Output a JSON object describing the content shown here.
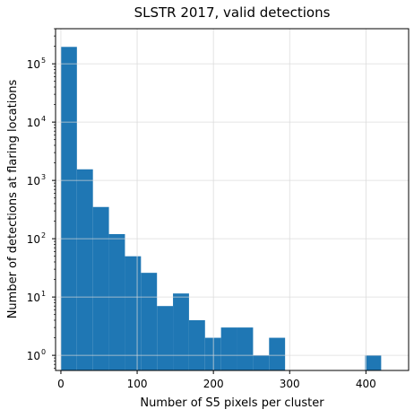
{
  "chart_data": {
    "type": "bar",
    "title": "SLSTR 2017, valid detections",
    "xlabel": "Number of S5 pixels per cluster",
    "ylabel": "Number of detections at flaring locations",
    "x_range": [
      -7,
      456
    ],
    "y_range": [
      0.55,
      400000
    ],
    "y_scale": "log",
    "grid": true,
    "x_ticks": [
      {
        "value": 0,
        "label": "0"
      },
      {
        "value": 100,
        "label": "100"
      },
      {
        "value": 200,
        "label": "200"
      },
      {
        "value": 300,
        "label": "300"
      },
      {
        "value": 400,
        "label": "400"
      }
    ],
    "y_ticks": [
      {
        "value": 1,
        "base": "10",
        "exp": "0"
      },
      {
        "value": 10,
        "base": "10",
        "exp": "1"
      },
      {
        "value": 100,
        "base": "10",
        "exp": "2"
      },
      {
        "value": 1000,
        "base": "10",
        "exp": "3"
      },
      {
        "value": 10000,
        "base": "10",
        "exp": "4"
      },
      {
        "value": 100000,
        "base": "10",
        "exp": "5"
      }
    ],
    "bar_color": "#1f77b4",
    "bins": [
      {
        "x0": 0,
        "x1": 21,
        "value": 195000
      },
      {
        "x0": 21,
        "x1": 42,
        "value": 1550
      },
      {
        "x0": 42,
        "x1": 63,
        "value": 350
      },
      {
        "x0": 63,
        "x1": 84,
        "value": 120
      },
      {
        "x0": 84,
        "x1": 105,
        "value": 50
      },
      {
        "x0": 105,
        "x1": 126,
        "value": 26
      },
      {
        "x0": 126,
        "x1": 147,
        "value": 7
      },
      {
        "x0": 147,
        "x1": 168,
        "value": 11.5
      },
      {
        "x0": 168,
        "x1": 189,
        "value": 4
      },
      {
        "x0": 189,
        "x1": 210,
        "value": 2
      },
      {
        "x0": 210,
        "x1": 231,
        "value": 3
      },
      {
        "x0": 231,
        "x1": 252,
        "value": 3
      },
      {
        "x0": 252,
        "x1": 273,
        "value": 1
      },
      {
        "x0": 273,
        "x1": 294,
        "value": 2
      },
      {
        "x0": 294,
        "x1": 315,
        "value": 0
      },
      {
        "x0": 315,
        "x1": 336,
        "value": 0
      },
      {
        "x0": 336,
        "x1": 357,
        "value": 0
      },
      {
        "x0": 357,
        "x1": 378,
        "value": 0
      },
      {
        "x0": 378,
        "x1": 399,
        "value": 0
      },
      {
        "x0": 399,
        "x1": 420,
        "value": 1
      }
    ]
  }
}
